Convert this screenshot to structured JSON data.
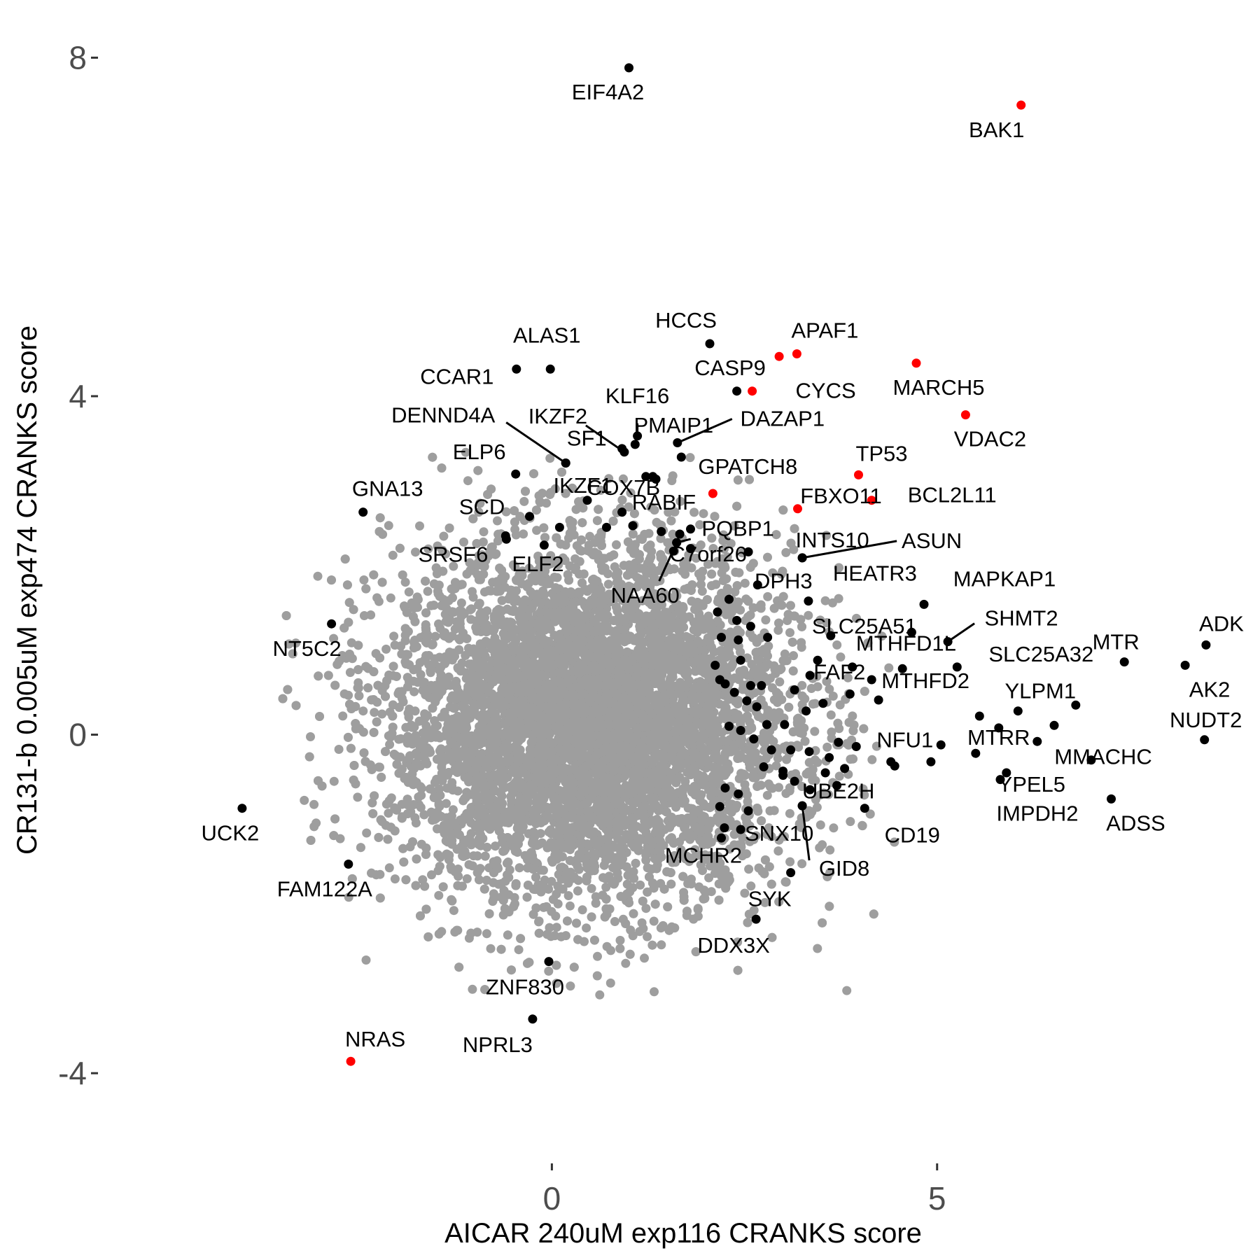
{
  "chart_data": {
    "type": "scatter",
    "xlabel": "AICAR 240uM exp116 CRANKS score",
    "ylabel": "CR131-b 0.005uM exp474 CRANKS score",
    "xlim": [
      -5.8,
      9.1
    ],
    "ylim": [
      -4.95,
      8.45
    ],
    "x_ticks": [
      0,
      5
    ],
    "x_tick_labels": [
      "0",
      "5"
    ],
    "y_ticks": [
      -4,
      0,
      4,
      8
    ],
    "y_tick_labels": [
      "-4",
      "0",
      "4",
      "8"
    ],
    "grid": false,
    "legend": "none",
    "colors": {
      "background": "#ffffff",
      "highlight": "#ff0000",
      "labeled": "#000000",
      "bulk": "#9e9e9e"
    },
    "bulk_cloud": {
      "description": "thousands of unlabeled grey points",
      "center": [
        0.5,
        0.15
      ],
      "spread": [
        1.3,
        1.05
      ],
      "count": 9000
    },
    "points": [
      {
        "label": "EIF4A2",
        "x": 1.0,
        "y": 7.88,
        "highlight": false
      },
      {
        "label": "BAK1",
        "x": 6.09,
        "y": 7.44,
        "highlight": true
      },
      {
        "label": "HCCS",
        "x": 2.05,
        "y": 4.62,
        "highlight": false
      },
      {
        "label": "APAF1",
        "x": 3.18,
        "y": 4.5,
        "highlight": true
      },
      {
        "label": "CASP9",
        "x": 2.95,
        "y": 4.47,
        "highlight": true
      },
      {
        "label": "ALAS1",
        "x": -0.02,
        "y": 4.32,
        "highlight": false
      },
      {
        "label": "CCAR1",
        "x": -0.46,
        "y": 4.32,
        "highlight": false
      },
      {
        "label": "MARCH5",
        "x": 4.73,
        "y": 4.39,
        "highlight": true
      },
      {
        "label": "CYCS",
        "x": 2.6,
        "y": 4.06,
        "highlight": true
      },
      {
        "label": "VDAC2",
        "x": 5.37,
        "y": 3.78,
        "highlight": true
      },
      {
        "label": "KLF16",
        "x": 1.11,
        "y": 3.53,
        "highlight": false
      },
      {
        "label": "PMAIP1",
        "x": 1.08,
        "y": 3.43,
        "highlight": false
      },
      {
        "label": "IKZF2",
        "x": 0.94,
        "y": 3.34,
        "highlight": false
      },
      {
        "label": "DAZAP1",
        "x": 1.63,
        "y": 3.45,
        "highlight": false
      },
      {
        "label": "GPATCH8",
        "x": 1.68,
        "y": 3.28,
        "highlight": false
      },
      {
        "label": "DENND4A",
        "x": 0.18,
        "y": 3.21,
        "highlight": false
      },
      {
        "label": "SF1",
        "x": 0.18,
        "y": 3.21,
        "highlight": false
      },
      {
        "label": "TP53",
        "x": 3.98,
        "y": 3.07,
        "highlight": true
      },
      {
        "label": "ELP6",
        "x": -0.47,
        "y": 3.08,
        "highlight": false
      },
      {
        "label": "COX7B",
        "x": 1.31,
        "y": 3.05,
        "highlight": false
      },
      {
        "label": "IKZF1",
        "x": 1.22,
        "y": 3.05,
        "highlight": false
      },
      {
        "label": "RABIF",
        "x": 2.09,
        "y": 2.85,
        "highlight": true
      },
      {
        "label": "BCL2L11",
        "x": 4.15,
        "y": 2.77,
        "highlight": true
      },
      {
        "label": "FBXO11",
        "x": 3.19,
        "y": 2.67,
        "highlight": true
      },
      {
        "label": "GNA13",
        "x": -2.45,
        "y": 2.63,
        "highlight": false
      },
      {
        "label": "SCD",
        "x": -0.29,
        "y": 2.58,
        "highlight": false
      },
      {
        "label": "PQBP1",
        "x": 2.55,
        "y": 2.16,
        "highlight": false
      },
      {
        "label": "INTS10",
        "x": 3.25,
        "y": 2.09,
        "highlight": false
      },
      {
        "label": "ASUN",
        "x": 3.25,
        "y": 2.09,
        "highlight": false
      },
      {
        "label": "C7orf26",
        "x": 1.62,
        "y": 2.27,
        "highlight": false
      },
      {
        "label": "NAA60",
        "x": 1.62,
        "y": 2.27,
        "highlight": false
      },
      {
        "label": "SRSF6",
        "x": -0.59,
        "y": 2.31,
        "highlight": false
      },
      {
        "label": "ELF2",
        "x": -0.1,
        "y": 2.24,
        "highlight": false
      },
      {
        "label": "DPH3",
        "x": 2.67,
        "y": 1.77,
        "highlight": false
      },
      {
        "label": "HEATR3",
        "x": 3.33,
        "y": 1.58,
        "highlight": false
      },
      {
        "label": "MAPKAP1",
        "x": 4.83,
        "y": 1.54,
        "highlight": false
      },
      {
        "label": "MTHFD1L",
        "x": 4.67,
        "y": 1.21,
        "highlight": false
      },
      {
        "label": "SLC25A51",
        "x": 3.62,
        "y": 1.17,
        "highlight": false
      },
      {
        "label": "SHMT2",
        "x": 5.14,
        "y": 1.1,
        "highlight": false
      },
      {
        "label": "ADK",
        "x": 8.49,
        "y": 1.06,
        "highlight": false
      },
      {
        "label": "MTR",
        "x": 7.43,
        "y": 0.86,
        "highlight": false
      },
      {
        "label": "AK2",
        "x": 8.22,
        "y": 0.82,
        "highlight": false
      },
      {
        "label": "SLC25A32",
        "x": 5.26,
        "y": 0.8,
        "highlight": false
      },
      {
        "label": "FAF2",
        "x": 3.87,
        "y": 0.48,
        "highlight": false
      },
      {
        "label": "MTHFD2",
        "x": 4.24,
        "y": 0.41,
        "highlight": false
      },
      {
        "label": "YLPM1",
        "x": 6.05,
        "y": 0.28,
        "highlight": false
      },
      {
        "label": "NUDT2",
        "x": 8.47,
        "y": -0.06,
        "highlight": false
      },
      {
        "label": "MMACHC",
        "x": 6.52,
        "y": 0.11,
        "highlight": false
      },
      {
        "label": "MTRR",
        "x": 5.8,
        "y": 0.08,
        "highlight": false
      },
      {
        "label": "NFU1",
        "x": 3.72,
        "y": -0.09,
        "highlight": false
      },
      {
        "label": "YPEL5",
        "x": 5.5,
        "y": -0.22,
        "highlight": false
      },
      {
        "label": "IMPDH2",
        "x": 5.82,
        "y": -0.53,
        "highlight": false
      },
      {
        "label": "ADSS",
        "x": 7.26,
        "y": -0.76,
        "highlight": false
      },
      {
        "label": "UBE2H",
        "x": 4.4,
        "y": -0.32,
        "highlight": false
      },
      {
        "label": "CD19",
        "x": 4.06,
        "y": -0.87,
        "highlight": false
      },
      {
        "label": "SNX10",
        "x": 3.25,
        "y": -0.84,
        "highlight": false
      },
      {
        "label": "GID8",
        "x": 3.25,
        "y": -0.84,
        "highlight": false
      },
      {
        "label": "MCHR2",
        "x": 2.24,
        "y": -1.1,
        "highlight": false
      },
      {
        "label": "SYK",
        "x": 3.1,
        "y": -1.63,
        "highlight": false
      },
      {
        "label": "DDX3X",
        "x": 2.65,
        "y": -2.18,
        "highlight": false
      },
      {
        "label": "NT5C2",
        "x": -2.86,
        "y": 1.31,
        "highlight": false
      },
      {
        "label": "UCK2",
        "x": -4.02,
        "y": -0.87,
        "highlight": false
      },
      {
        "label": "FAM122A",
        "x": -2.64,
        "y": -1.53,
        "highlight": false
      },
      {
        "label": "ZNF830",
        "x": -0.04,
        "y": -2.68,
        "highlight": false
      },
      {
        "label": "NPRL3",
        "x": -0.25,
        "y": -3.36,
        "highlight": false
      },
      {
        "label": "NRAS",
        "x": -2.61,
        "y": -3.86,
        "highlight": true
      }
    ],
    "unlabeled_black_points": [
      [
        2.4,
        4.06
      ],
      [
        0.91,
        3.38
      ],
      [
        1.35,
        3.02
      ],
      [
        0.91,
        2.63
      ],
      [
        0.46,
        2.77
      ],
      [
        1.05,
        2.47
      ],
      [
        0.71,
        2.45
      ],
      [
        0.1,
        2.45
      ],
      [
        -0.6,
        2.35
      ],
      [
        1.42,
        2.4
      ],
      [
        1.58,
        2.17
      ],
      [
        1.66,
        2.37
      ],
      [
        1.8,
        2.43
      ],
      [
        1.8,
        2.2
      ],
      [
        2.3,
        1.6
      ],
      [
        2.15,
        1.45
      ],
      [
        2.4,
        1.35
      ],
      [
        2.58,
        1.28
      ],
      [
        2.42,
        1.12
      ],
      [
        2.2,
        1.15
      ],
      [
        2.8,
        1.15
      ],
      [
        2.45,
        0.88
      ],
      [
        2.12,
        0.82
      ],
      [
        2.18,
        0.65
      ],
      [
        2.25,
        0.6
      ],
      [
        2.58,
        0.58
      ],
      [
        2.72,
        0.58
      ],
      [
        2.37,
        0.5
      ],
      [
        2.53,
        0.4
      ],
      [
        2.66,
        0.33
      ],
      [
        2.79,
        0.12
      ],
      [
        3.02,
        0.12
      ],
      [
        3.3,
        0.28
      ],
      [
        3.52,
        0.37
      ],
      [
        3.15,
        0.53
      ],
      [
        3.35,
        0.7
      ],
      [
        3.45,
        0.88
      ],
      [
        3.9,
        0.8
      ],
      [
        4.15,
        0.65
      ],
      [
        4.55,
        0.78
      ],
      [
        2.3,
        0.1
      ],
      [
        2.45,
        0.05
      ],
      [
        2.62,
        -0.05
      ],
      [
        2.85,
        -0.18
      ],
      [
        3.1,
        -0.18
      ],
      [
        3.34,
        -0.2
      ],
      [
        3.6,
        -0.27
      ],
      [
        3.8,
        -0.4
      ],
      [
        3.95,
        -0.14
      ],
      [
        2.75,
        -0.38
      ],
      [
        3.0,
        -0.43
      ],
      [
        3.15,
        -0.55
      ],
      [
        3.35,
        -0.65
      ],
      [
        3.55,
        -0.45
      ],
      [
        2.25,
        -0.63
      ],
      [
        2.42,
        -0.7
      ],
      [
        2.18,
        -0.85
      ],
      [
        2.55,
        -0.9
      ],
      [
        2.45,
        -1.12
      ],
      [
        2.2,
        -1.22
      ],
      [
        3.0,
        -0.48
      ],
      [
        3.7,
        -0.6
      ],
      [
        4.45,
        -0.37
      ],
      [
        5.05,
        -0.12
      ],
      [
        4.92,
        -0.32
      ],
      [
        5.55,
        0.22
      ],
      [
        6.3,
        -0.08
      ],
      [
        5.9,
        -0.45
      ],
      [
        6.8,
        0.35
      ],
      [
        7.0,
        -0.3
      ]
    ]
  }
}
